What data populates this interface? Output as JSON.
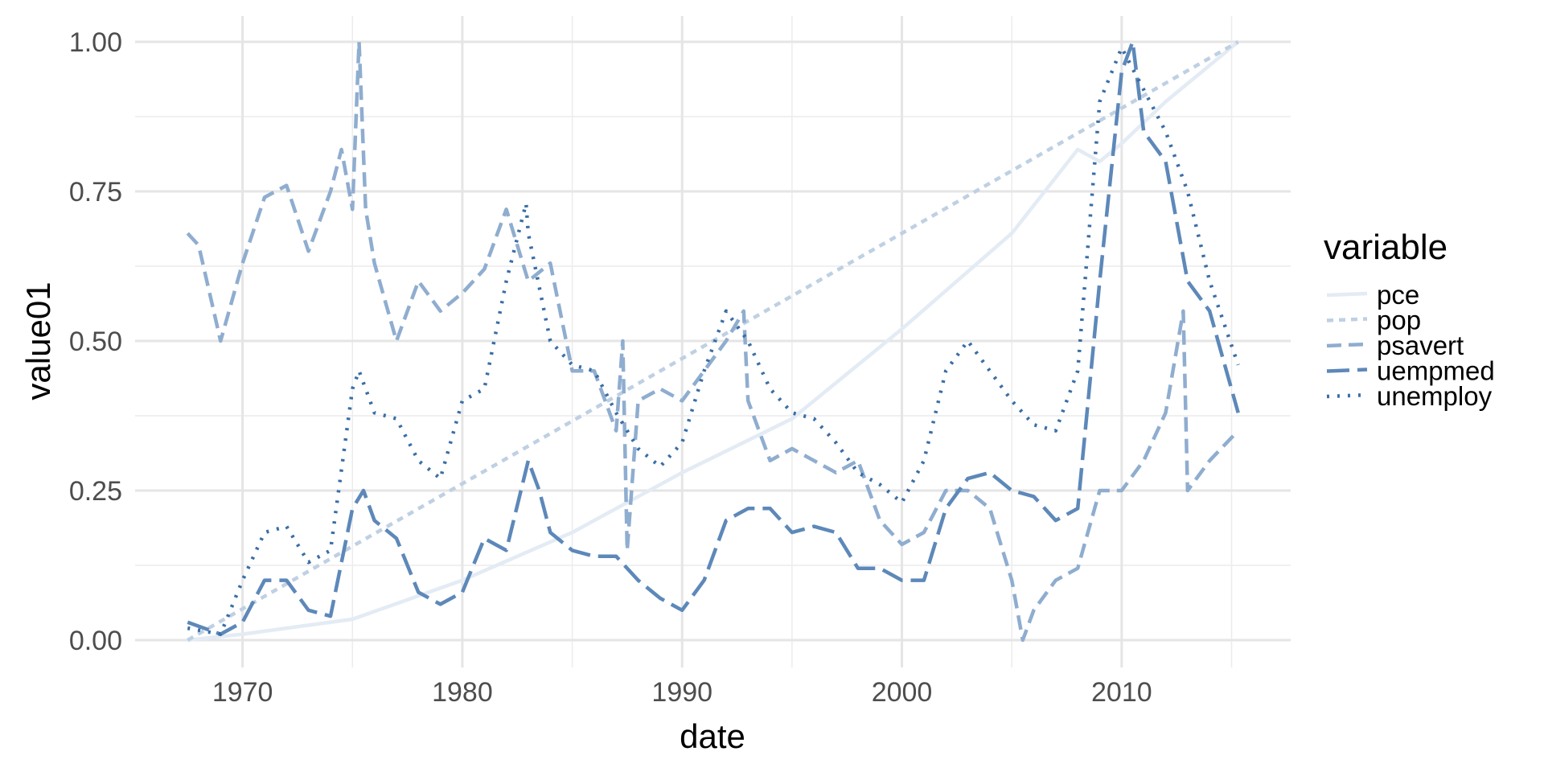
{
  "chart_data": {
    "type": "line",
    "title": "",
    "xlabel": "date",
    "ylabel": "value01",
    "xlim": [
      1967.5,
      2015.3
    ],
    "ylim": [
      0,
      1
    ],
    "x_ticks": [
      1970,
      1980,
      1990,
      2000,
      2010
    ],
    "x_tick_labels": [
      "1970",
      "1980",
      "1990",
      "2000",
      "2010"
    ],
    "y_ticks": [
      0,
      0.25,
      0.5,
      0.75,
      1
    ],
    "y_tick_labels": [
      "0.00",
      "0.25",
      "0.50",
      "0.75",
      "1.00"
    ],
    "grid": true,
    "legend": {
      "title": "variable",
      "placement": "right"
    },
    "series": [
      {
        "name": "pce",
        "color": "#e3ebf4",
        "linetype": "solid",
        "x": [
          1967.5,
          1970,
          1975,
          1980,
          1985,
          1990,
          1995,
          2000,
          2005,
          2008,
          2009,
          2010,
          2012,
          2015.3
        ],
        "y": [
          0,
          0.01,
          0.035,
          0.1,
          0.18,
          0.28,
          0.37,
          0.52,
          0.68,
          0.82,
          0.8,
          0.83,
          0.9,
          1.0
        ]
      },
      {
        "name": "pop",
        "color": "#bfd0e3",
        "linetype": "dashed",
        "x": [
          1967.5,
          2015.3
        ],
        "y": [
          0,
          1
        ]
      },
      {
        "name": "psavert",
        "color": "#8fadcf",
        "linetype": "dashed-long",
        "x": [
          1967.5,
          1968,
          1969,
          1970,
          1971,
          1972,
          1973,
          1974,
          1974.5,
          1975,
          1975.3,
          1975.6,
          1976,
          1977,
          1978,
          1979,
          1980,
          1981,
          1982,
          1983,
          1984,
          1985,
          1986,
          1987,
          1987.3,
          1987.5,
          1988,
          1989,
          1990,
          1991,
          1992,
          1992.8,
          1993,
          1994,
          1995,
          1996,
          1997,
          1998,
          1999,
          2000,
          2001,
          2002,
          2003,
          2004,
          2005,
          2005.5,
          2006,
          2007,
          2008,
          2009,
          2010,
          2011,
          2012,
          2012.8,
          2013,
          2014,
          2015.3
        ],
        "y": [
          0.68,
          0.66,
          0.5,
          0.63,
          0.74,
          0.76,
          0.65,
          0.75,
          0.82,
          0.72,
          1.0,
          0.72,
          0.63,
          0.5,
          0.6,
          0.55,
          0.58,
          0.62,
          0.72,
          0.6,
          0.63,
          0.45,
          0.45,
          0.35,
          0.5,
          0.15,
          0.4,
          0.42,
          0.4,
          0.45,
          0.5,
          0.55,
          0.4,
          0.3,
          0.32,
          0.3,
          0.28,
          0.3,
          0.2,
          0.16,
          0.18,
          0.25,
          0.25,
          0.22,
          0.1,
          0.0,
          0.05,
          0.1,
          0.12,
          0.25,
          0.25,
          0.3,
          0.38,
          0.55,
          0.25,
          0.3,
          0.35
        ]
      },
      {
        "name": "uempmed",
        "color": "#5d88b9",
        "linetype": "longdash",
        "x": [
          1967.5,
          1969,
          1970,
          1971,
          1972,
          1973,
          1974,
          1975,
          1975.5,
          1976,
          1977,
          1978,
          1979,
          1980,
          1981,
          1982,
          1983,
          1983.5,
          1984,
          1985,
          1986,
          1987,
          1988,
          1989,
          1990,
          1991,
          1992,
          1993,
          1994,
          1995,
          1996,
          1997,
          1998,
          1999,
          2000,
          2001,
          2002,
          2003,
          2004,
          2005,
          2006,
          2007,
          2008,
          2009,
          2010,
          2010.5,
          2011,
          2012,
          2013,
          2014,
          2015.3
        ],
        "y": [
          0.03,
          0.01,
          0.03,
          0.1,
          0.1,
          0.05,
          0.04,
          0.22,
          0.25,
          0.2,
          0.17,
          0.08,
          0.06,
          0.08,
          0.17,
          0.15,
          0.3,
          0.25,
          0.18,
          0.15,
          0.14,
          0.14,
          0.1,
          0.07,
          0.05,
          0.1,
          0.2,
          0.22,
          0.22,
          0.18,
          0.19,
          0.18,
          0.12,
          0.12,
          0.1,
          0.1,
          0.22,
          0.27,
          0.28,
          0.25,
          0.24,
          0.2,
          0.22,
          0.6,
          0.95,
          1.0,
          0.85,
          0.8,
          0.6,
          0.55,
          0.38
        ]
      },
      {
        "name": "unemploy",
        "color": "#3a6ea5",
        "linetype": "dotted",
        "x": [
          1967.5,
          1969,
          1970,
          1971,
          1972,
          1973,
          1974,
          1975,
          1975.3,
          1976,
          1977,
          1978,
          1979,
          1980,
          1981,
          1982,
          1982.9,
          1983,
          1984,
          1985,
          1986,
          1987,
          1988,
          1989,
          1990,
          1991,
          1992,
          1993,
          1994,
          1995,
          1996,
          1997,
          1998,
          1999,
          2000,
          2001,
          2002,
          2003,
          2004,
          2005,
          2006,
          2007,
          2008,
          2009,
          2010,
          2011,
          2012,
          2013,
          2014,
          2015.3
        ],
        "y": [
          0.02,
          0.01,
          0.1,
          0.18,
          0.19,
          0.13,
          0.15,
          0.42,
          0.45,
          0.38,
          0.37,
          0.3,
          0.27,
          0.4,
          0.42,
          0.6,
          0.73,
          0.68,
          0.5,
          0.46,
          0.45,
          0.38,
          0.32,
          0.29,
          0.33,
          0.45,
          0.55,
          0.5,
          0.42,
          0.38,
          0.37,
          0.33,
          0.28,
          0.26,
          0.23,
          0.3,
          0.45,
          0.5,
          0.45,
          0.4,
          0.36,
          0.35,
          0.45,
          0.9,
          0.99,
          0.92,
          0.85,
          0.75,
          0.6,
          0.46
        ]
      }
    ]
  }
}
